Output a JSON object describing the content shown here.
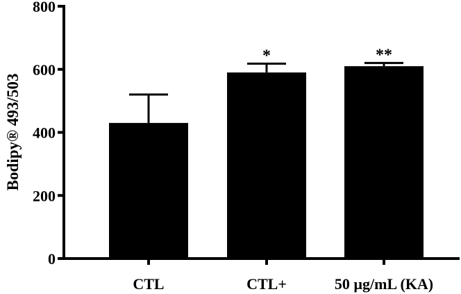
{
  "chart_data": {
    "type": "bar",
    "ylabel": "Bodipy® 493/503",
    "xlabel": "",
    "ylim": [
      0,
      800
    ],
    "yticks": [
      0,
      200,
      400,
      600,
      800
    ],
    "categories": [
      "CTL",
      "CTL+",
      "50 µg/mL (KA)"
    ],
    "values": [
      430,
      590,
      610
    ],
    "error_upper": [
      90,
      28,
      10
    ],
    "significance": [
      "",
      "*",
      "**"
    ],
    "bar_color": "#000000",
    "error_bars": "upper-only",
    "grid": false,
    "legend": "none"
  }
}
